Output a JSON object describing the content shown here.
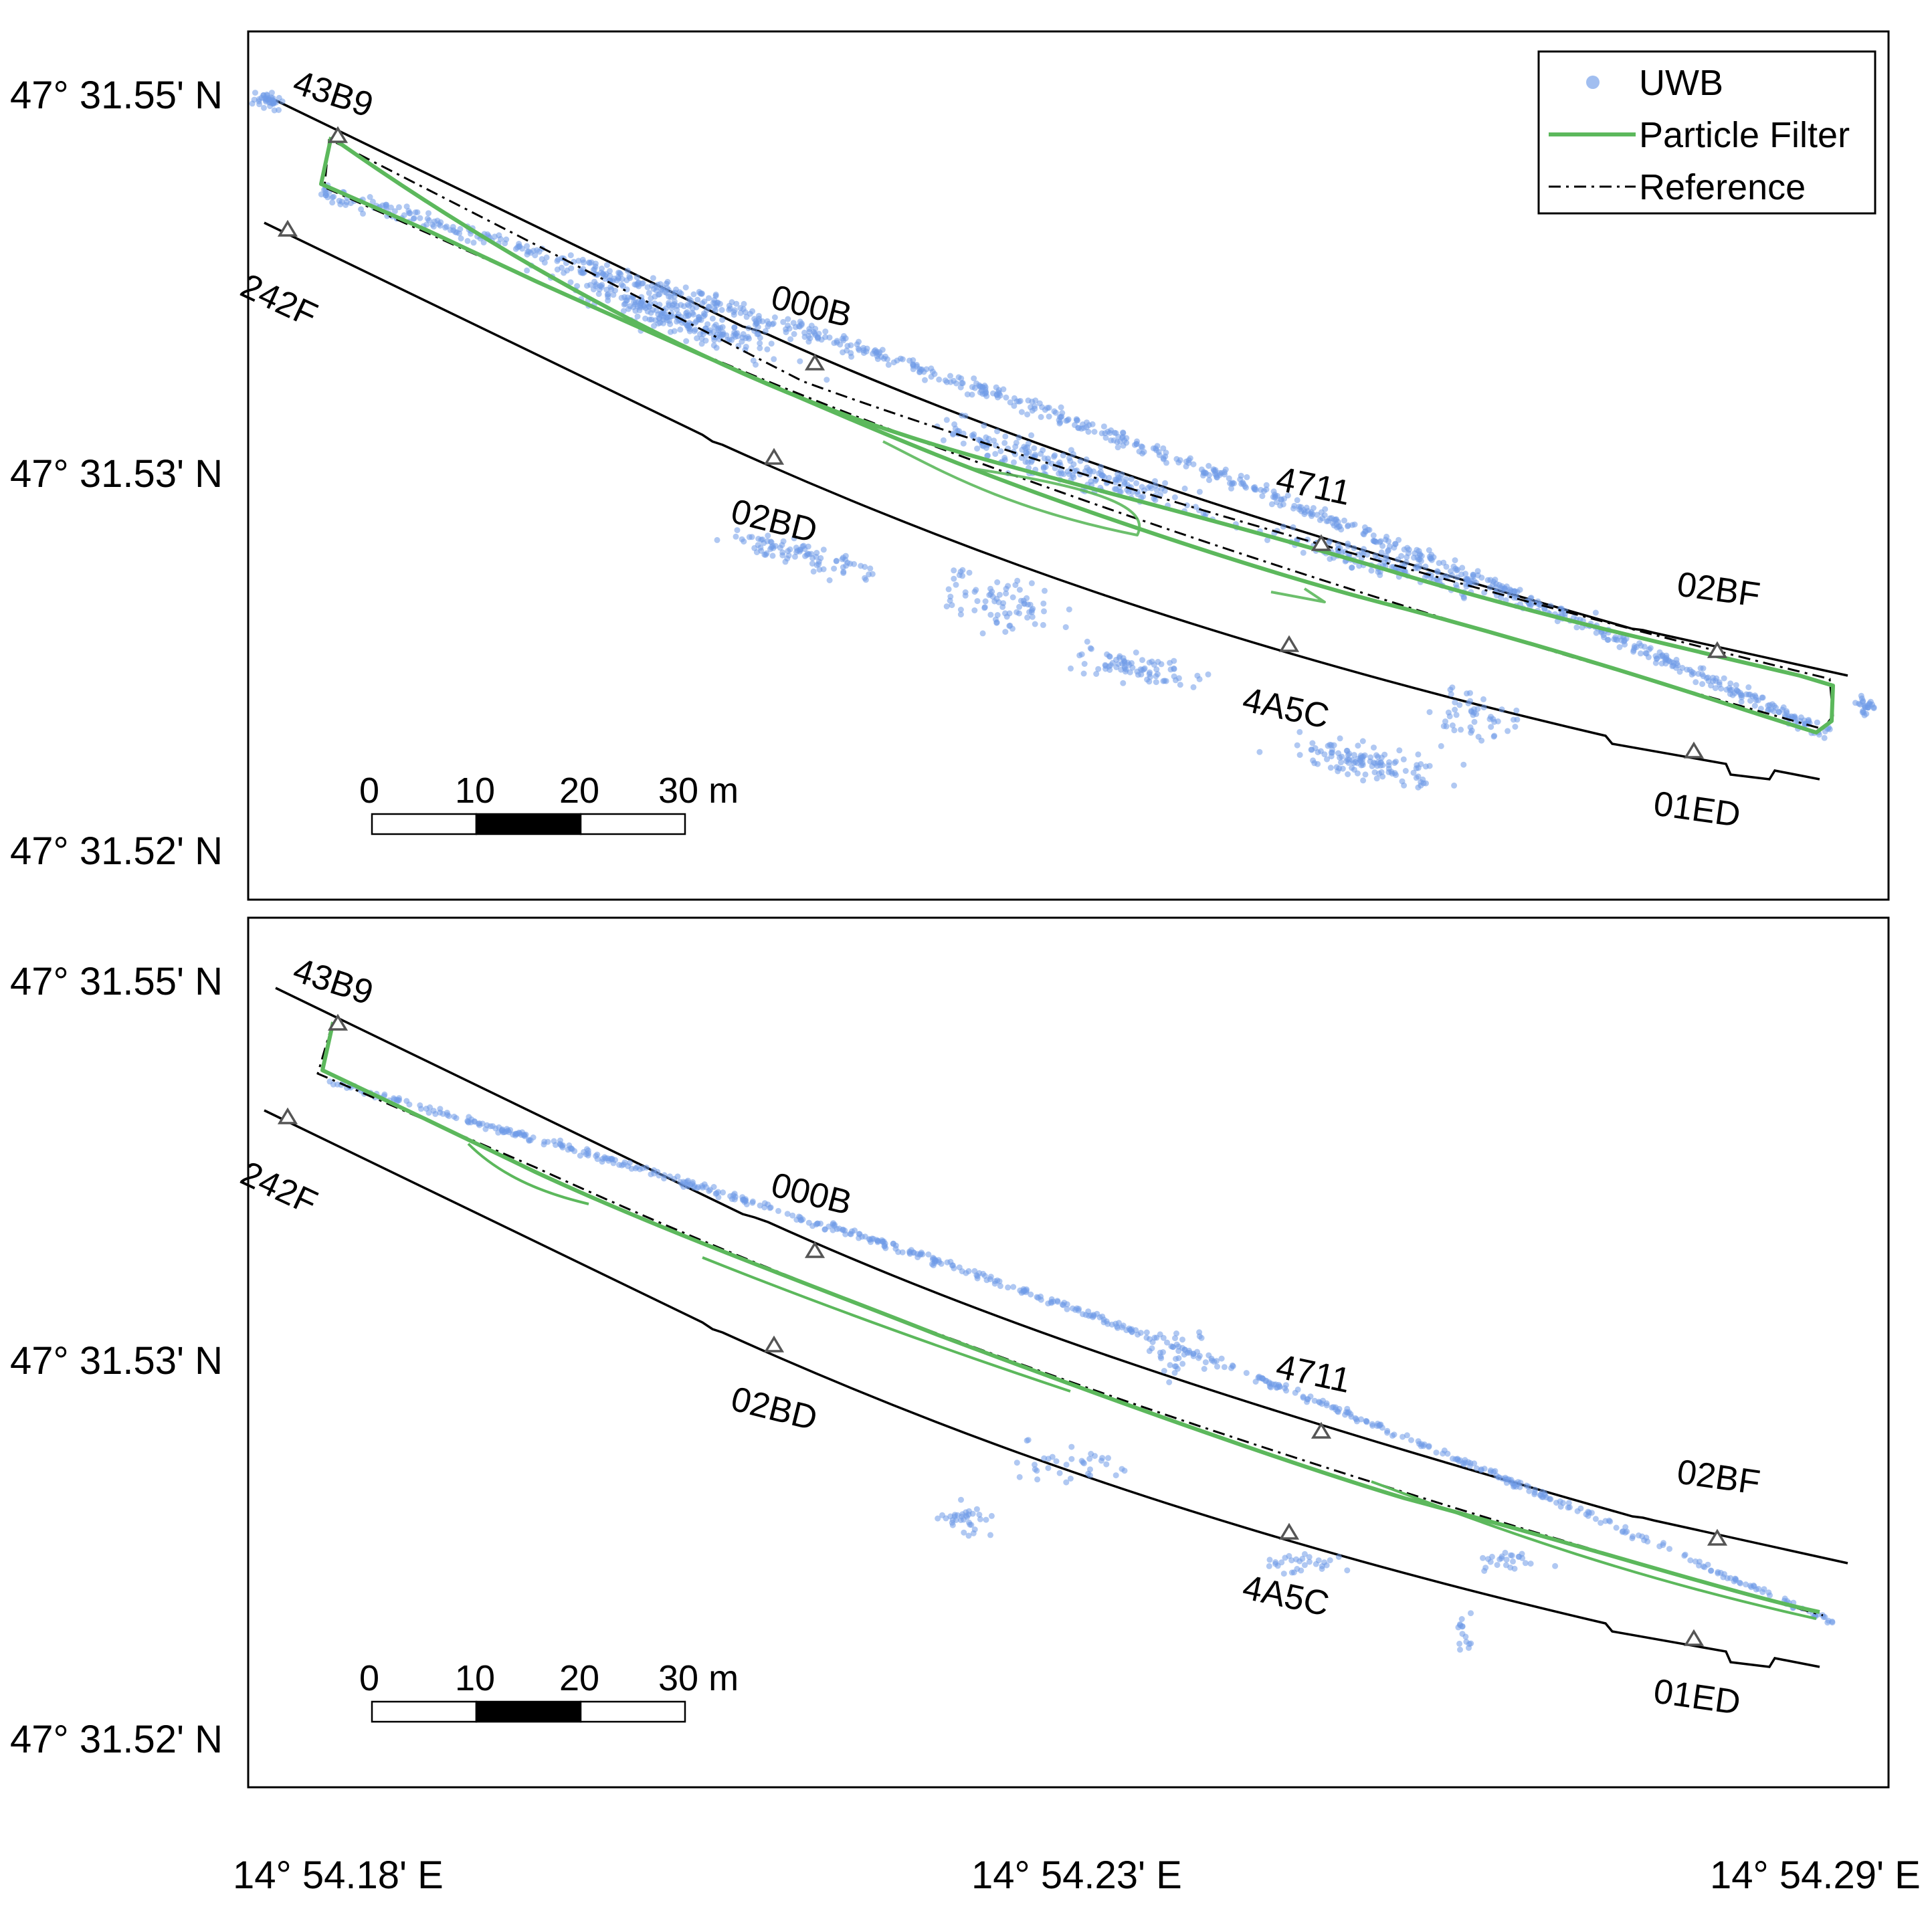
{
  "figure": {
    "y_axis_labels": [
      "47° 31.55' N",
      "47° 31.53' N",
      "47° 31.52' N"
    ],
    "x_axis_labels": [
      "14° 54.18' E",
      "14° 54.23' E",
      "14° 54.29' E"
    ],
    "legend": {
      "items": [
        {
          "label": "UWB",
          "kind": "marker"
        },
        {
          "label": "Particle Filter",
          "kind": "line"
        },
        {
          "label": "Reference",
          "kind": "dashdot"
        }
      ]
    },
    "scale_bar": {
      "ticks": [
        "0",
        "10",
        "20",
        "30 m"
      ]
    },
    "anchors": [
      "43B9",
      "242F",
      "000B",
      "02BD",
      "4711",
      "4A5C",
      "02BF",
      "01ED"
    ],
    "colors": {
      "uwb": "#6f9be8",
      "particle_filter": "#5cb85c",
      "reference": "#000000",
      "anchor_marker": "#555555",
      "frame": "#000000"
    }
  },
  "panels": [
    {
      "id": "top",
      "uwb_spread": "high",
      "pf_variant": "loop"
    },
    {
      "id": "bottom",
      "uwb_spread": "low",
      "pf_variant": "single"
    }
  ]
}
